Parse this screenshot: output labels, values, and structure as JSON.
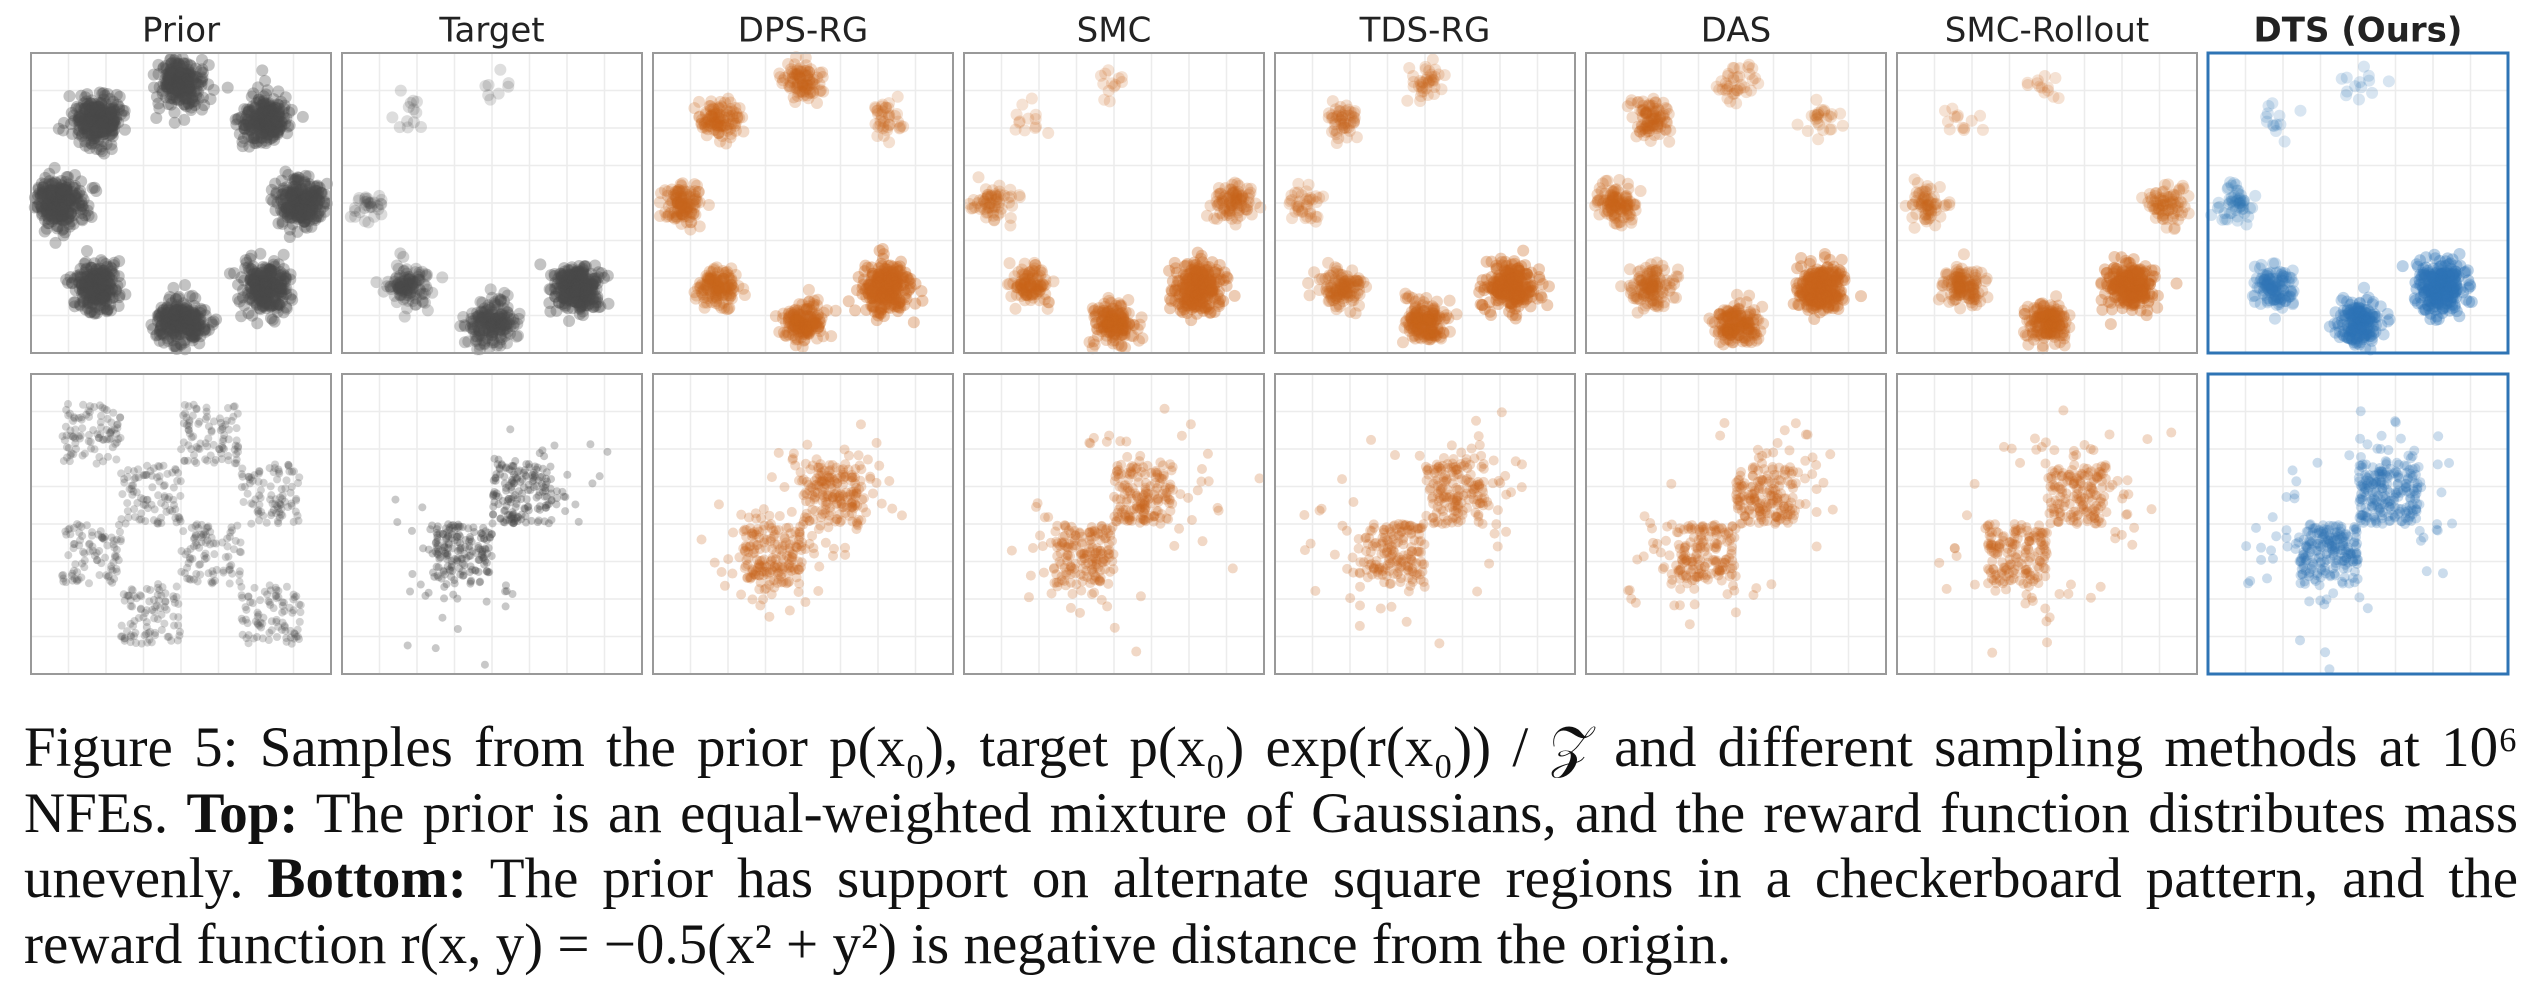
{
  "figure": {
    "columns": [
      "Prior",
      "Target",
      "DPS-RG",
      "SMC",
      "TDS-RG",
      "DAS",
      "SMC-Rollout",
      "DTS (Ours)"
    ],
    "caption": {
      "label": "Figure 5:",
      "intro": "Samples from the prior p(x₀), target p(x₀) exp(r(x₀)) / 𝒵 and different sampling methods at 10⁶ NFEs.",
      "top_label": "Top:",
      "top_text": "The prior is an equal-weighted mixture of Gaussians, and the reward function distributes mass unevenly.",
      "bottom_label": "Bottom:",
      "bottom_text": "The prior has support on alternate square regions in a checkerboard pattern, and the reward function r(x, y) = −0.5(x² + y²) is negative distance from the origin."
    }
  }
}
